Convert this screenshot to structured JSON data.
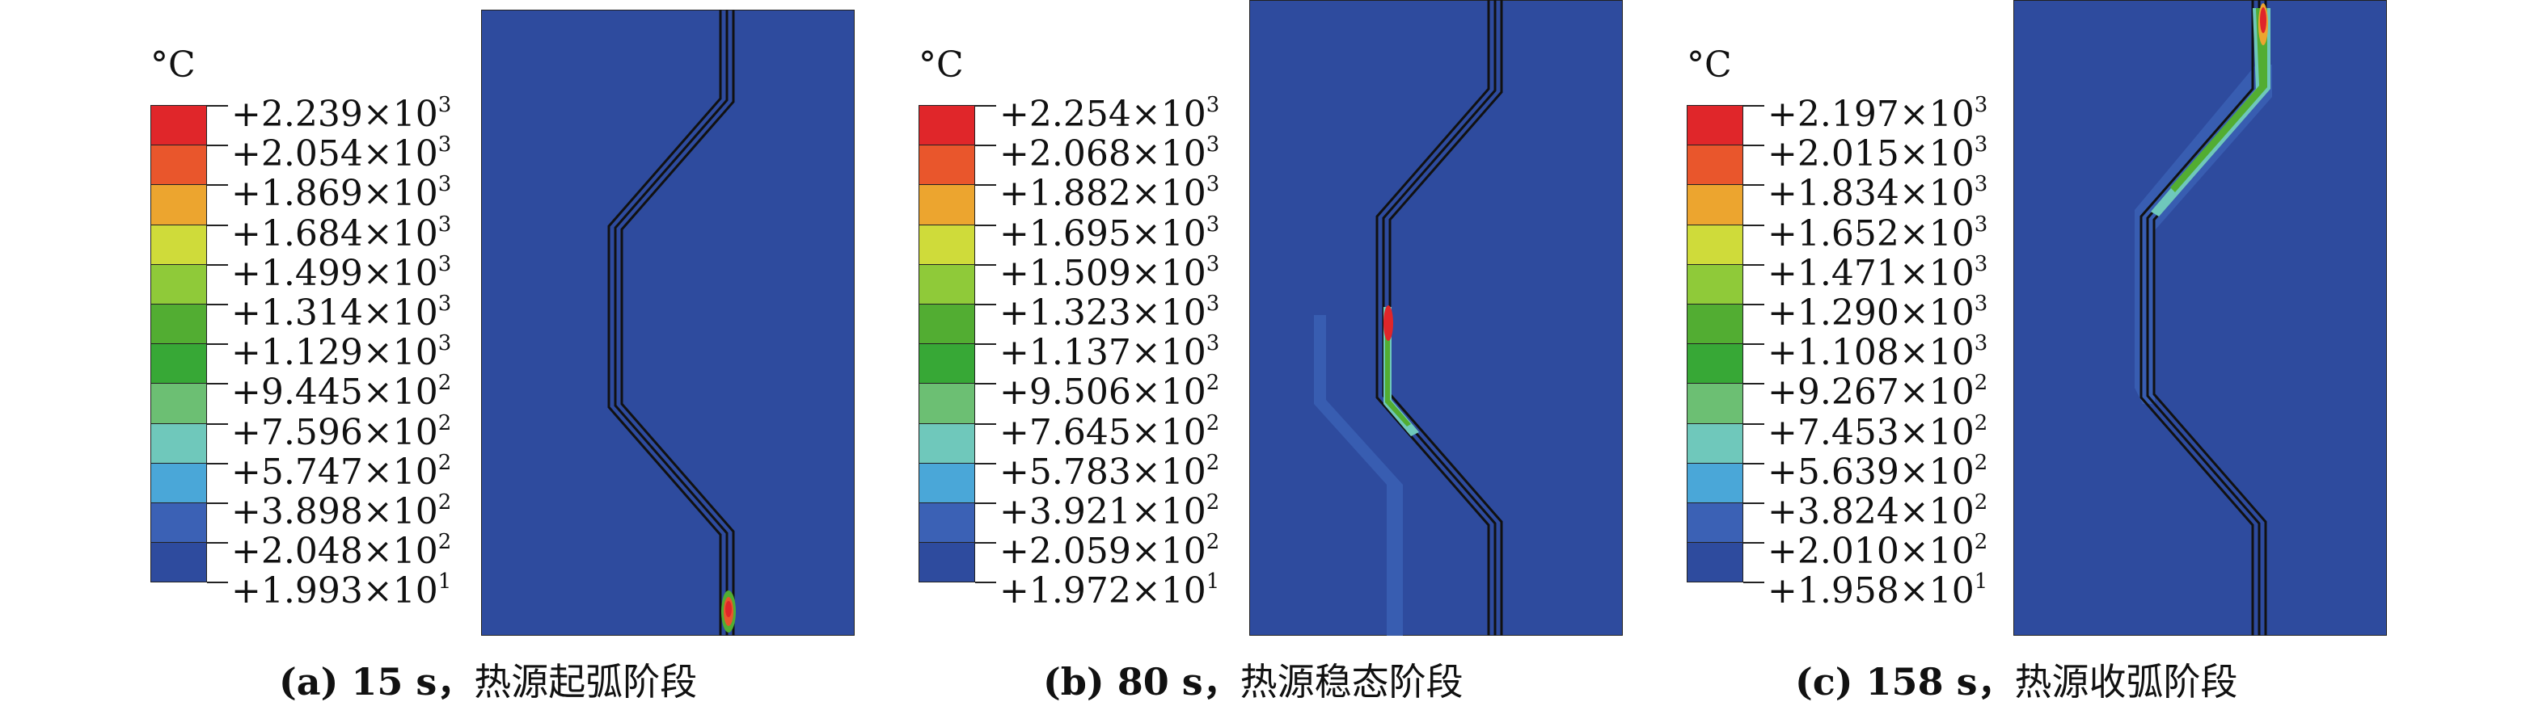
{
  "unit": "°C",
  "colors": [
    "#e0262a",
    "#e9562c",
    "#eca52f",
    "#cfdb3a",
    "#8fca39",
    "#52ad32",
    "#37a836",
    "#6cbf73",
    "#6fc8bb",
    "#4aa7d8",
    "#3b61b5",
    "#2e4b9e"
  ],
  "panels": [
    {
      "labels": [
        [
          "+2.239×10",
          "3"
        ],
        [
          "+2.054×10",
          "3"
        ],
        [
          "+1.869×10",
          "3"
        ],
        [
          "+1.684×10",
          "3"
        ],
        [
          "+1.499×10",
          "3"
        ],
        [
          "+1.314×10",
          "3"
        ],
        [
          "+1.129×10",
          "3"
        ],
        [
          "+9.445×10",
          "2"
        ],
        [
          "+7.596×10",
          "2"
        ],
        [
          "+5.747×10",
          "2"
        ],
        [
          "+3.898×10",
          "2"
        ],
        [
          "+2.048×10",
          "2"
        ],
        [
          "+1.993×10",
          "1"
        ]
      ],
      "caption_bold": "(a) 15 s，",
      "caption_text": "热源起弧阶段"
    },
    {
      "labels": [
        [
          "+2.254×10",
          "3"
        ],
        [
          "+2.068×10",
          "3"
        ],
        [
          "+1.882×10",
          "3"
        ],
        [
          "+1.695×10",
          "3"
        ],
        [
          "+1.509×10",
          "3"
        ],
        [
          "+1.323×10",
          "3"
        ],
        [
          "+1.137×10",
          "3"
        ],
        [
          "+9.506×10",
          "2"
        ],
        [
          "+7.645×10",
          "2"
        ],
        [
          "+5.783×10",
          "2"
        ],
        [
          "+3.921×10",
          "2"
        ],
        [
          "+2.059×10",
          "2"
        ],
        [
          "+1.972×10",
          "1"
        ]
      ],
      "caption_bold": "(b) 80 s，",
      "caption_text": "热源稳态阶段"
    },
    {
      "labels": [
        [
          "+2.197×10",
          "3"
        ],
        [
          "+2.015×10",
          "3"
        ],
        [
          "+1.834×10",
          "3"
        ],
        [
          "+1.652×10",
          "3"
        ],
        [
          "+1.471×10",
          "3"
        ],
        [
          "+1.290×10",
          "3"
        ],
        [
          "+1.108×10",
          "3"
        ],
        [
          "+9.267×10",
          "2"
        ],
        [
          "+7.453×10",
          "2"
        ],
        [
          "+5.639×10",
          "2"
        ],
        [
          "+3.824×10",
          "2"
        ],
        [
          "+2.010×10",
          "2"
        ],
        [
          "+1.958×10",
          "1"
        ]
      ],
      "caption_bold": "(c) 158 s，",
      "caption_text": "热源收弧阶段"
    }
  ]
}
